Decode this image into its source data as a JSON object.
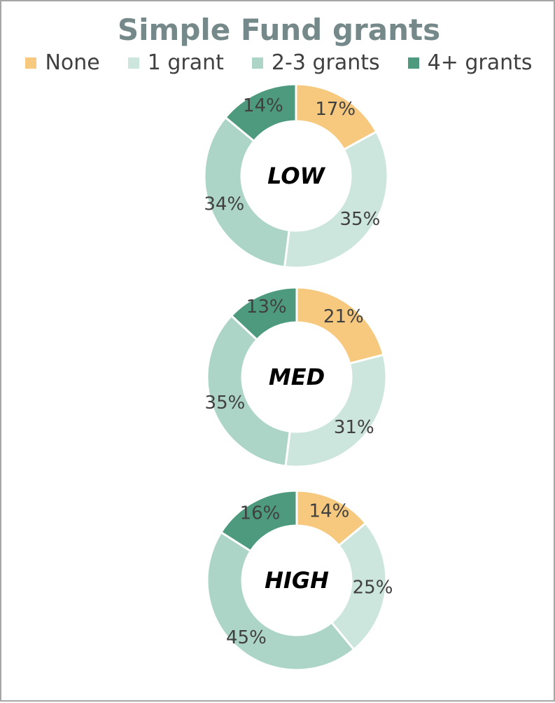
{
  "chart_data": {
    "type": "pie",
    "variant": "donut",
    "title": "Simple Fund grants",
    "legend_position": "top",
    "categories": [
      "None",
      "1 grant",
      "2-3 grants",
      "4+ grants"
    ],
    "colors": [
      "#f6c97f",
      "#cce5dd",
      "#acd5c8",
      "#4d9a7f"
    ],
    "charts": [
      {
        "label": "LOW",
        "values": [
          17,
          35,
          34,
          14
        ],
        "value_labels": [
          "17%",
          "35%",
          "34%",
          "14%"
        ]
      },
      {
        "label": "MED",
        "values": [
          21,
          31,
          35,
          13
        ],
        "value_labels": [
          "21%",
          "31%",
          "35%",
          "13%"
        ]
      },
      {
        "label": "HIGH",
        "values": [
          14,
          25,
          45,
          16
        ],
        "value_labels": [
          "14%",
          "25%",
          "45%",
          "16%"
        ]
      }
    ]
  }
}
